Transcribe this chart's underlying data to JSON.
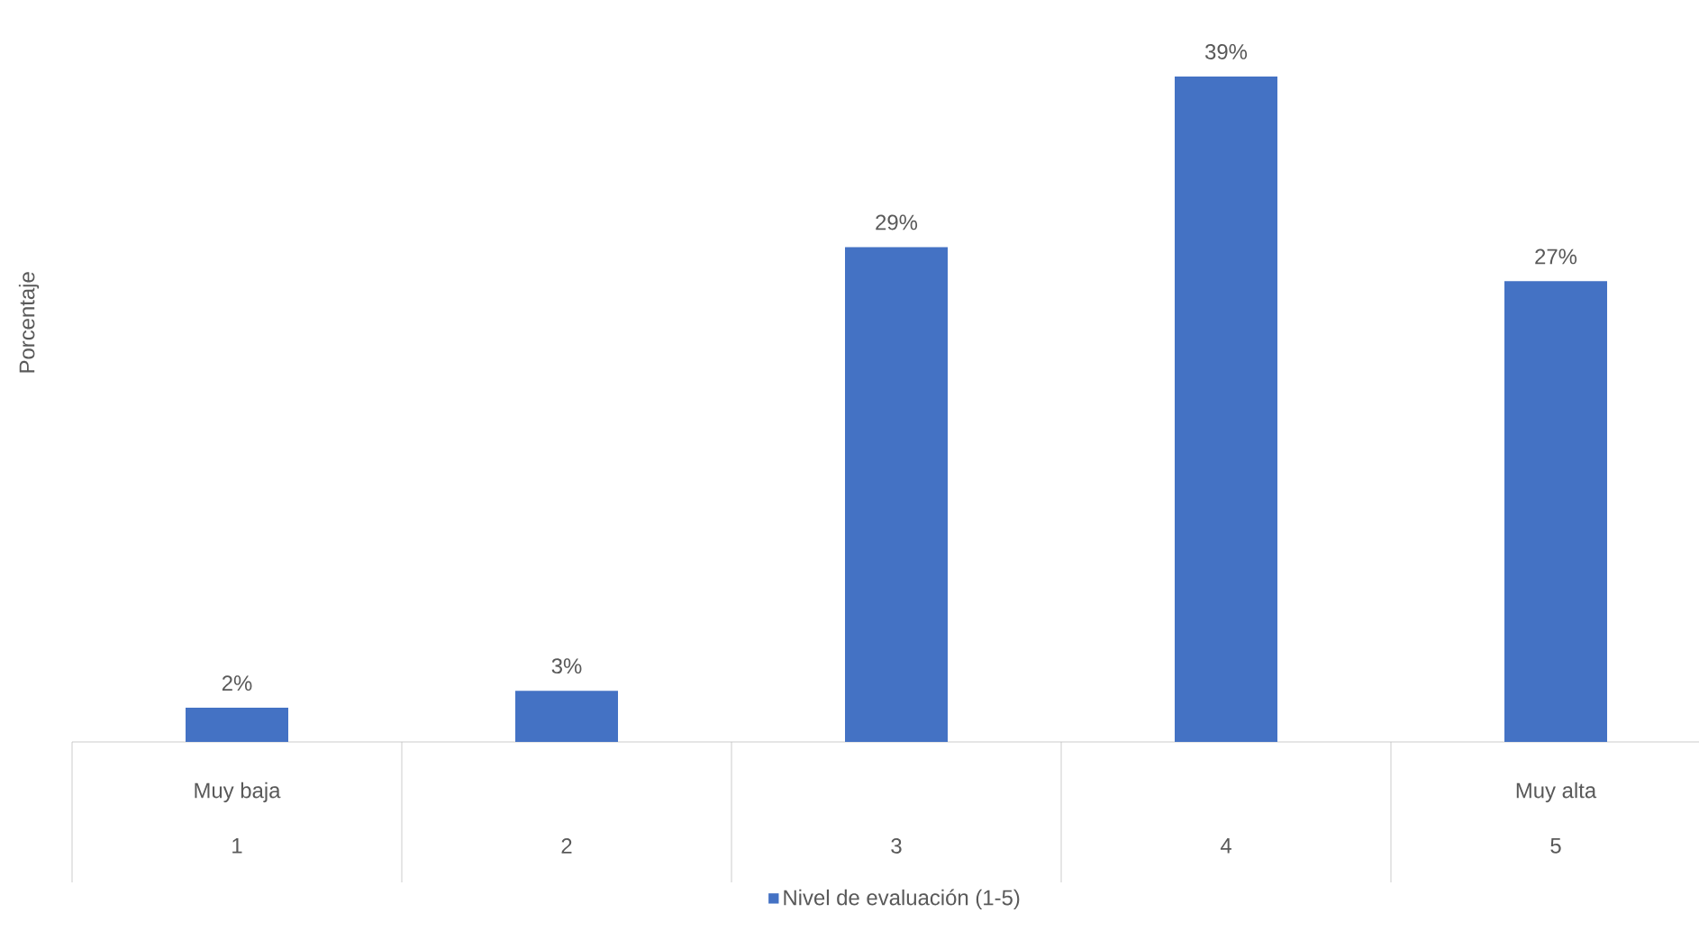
{
  "chart_data": {
    "type": "bar",
    "ylabel": "Porcentaje",
    "categories": [
      "1",
      "2",
      "3",
      "4",
      "5"
    ],
    "series": [
      {
        "name": "Nivel de evaluación (1-5)",
        "color": "#4472c4",
        "values": [
          2,
          3,
          29,
          39,
          27
        ],
        "value_labels": [
          "2%",
          "3%",
          "29%",
          "39%",
          "27%"
        ]
      }
    ],
    "annotations": [
      "Muy baja",
      "Muy alta"
    ],
    "legend": "bottom"
  }
}
